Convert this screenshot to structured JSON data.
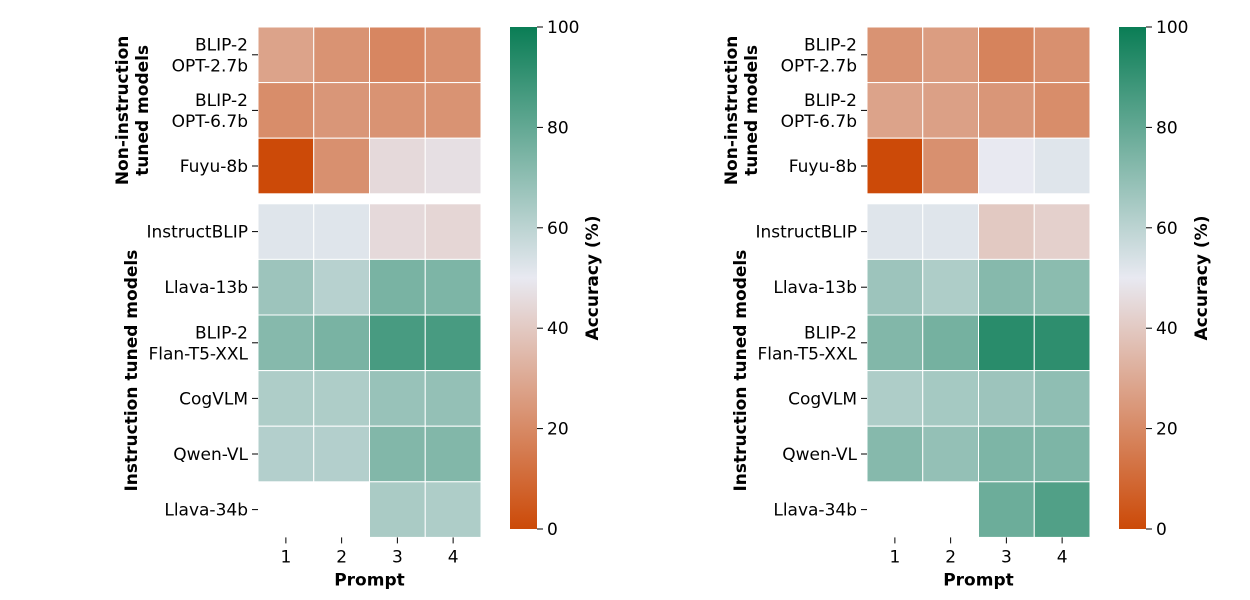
{
  "chart_data": [
    {
      "type": "heatmap",
      "xlabel": "Prompt",
      "colorbar_label": "Accuracy (%)",
      "colorbar_range": [
        0,
        100
      ],
      "colorbar_ticks": [
        0,
        20,
        40,
        60,
        80,
        100
      ],
      "colormap": {
        "low": "#cc4a08",
        "mid": "#e8e9f1",
        "high": "#0a7d55"
      },
      "x_categories": [
        "1",
        "2",
        "3",
        "4"
      ],
      "groups": [
        {
          "label": [
            "Non-instruction",
            "tuned models"
          ],
          "rows": [
            {
              "label": [
                "BLIP-2",
                "OPT-2.7b"
              ],
              "values": [
                28,
                23,
                19,
                22
              ]
            },
            {
              "label": [
                "BLIP-2",
                "OPT-6.7b"
              ],
              "values": [
                21,
                24,
                23,
                23
              ]
            },
            {
              "label": [
                "Fuyu-8b"
              ],
              "values": [
                0,
                22,
                45,
                47
              ]
            }
          ]
        },
        {
          "label": [
            "Instruction tuned models"
          ],
          "rows": [
            {
              "label": [
                "InstructBLIP"
              ],
              "values": [
                52,
                52,
                45,
                44
              ]
            },
            {
              "label": [
                "Llava-13b"
              ],
              "values": [
                67,
                61,
                75,
                74
              ]
            },
            {
              "label": [
                "BLIP-2",
                "Flan-T5-XXL"
              ],
              "values": [
                72,
                75,
                86,
                86
              ]
            },
            {
              "label": [
                "CogVLM"
              ],
              "values": [
                63,
                63,
                68,
                69
              ]
            },
            {
              "label": [
                "Qwen-VL"
              ],
              "values": [
                62,
                62,
                73,
                73
              ]
            },
            {
              "label": [
                "Llava-34b"
              ],
              "values": [
                null,
                null,
                64,
                63
              ]
            }
          ]
        }
      ]
    },
    {
      "type": "heatmap",
      "xlabel": "Prompt",
      "colorbar_label": "Accuracy (%)",
      "colorbar_range": [
        0,
        100
      ],
      "colorbar_ticks": [
        0,
        20,
        40,
        60,
        80,
        100
      ],
      "colormap": {
        "low": "#cc4a08",
        "mid": "#e8e9f1",
        "high": "#0a7d55"
      },
      "x_categories": [
        "1",
        "2",
        "3",
        "4"
      ],
      "groups": [
        {
          "label": [
            "Non-instruction",
            "tuned models"
          ],
          "rows": [
            {
              "label": [
                "BLIP-2",
                "OPT-2.7b"
              ],
              "values": [
                23,
                26,
                18,
                22
              ]
            },
            {
              "label": [
                "BLIP-2",
                "OPT-6.7b"
              ],
              "values": [
                28,
                27,
                24,
                21
              ]
            },
            {
              "label": [
                "Fuyu-8b"
              ],
              "values": [
                0,
                22,
                50,
                52
              ]
            }
          ]
        },
        {
          "label": [
            "Instruction tuned models"
          ],
          "rows": [
            {
              "label": [
                "InstructBLIP"
              ],
              "values": [
                52,
                52,
                40,
                42
              ]
            },
            {
              "label": [
                "Llava-13b"
              ],
              "values": [
                67,
                63,
                72,
                71
              ]
            },
            {
              "label": [
                "BLIP-2",
                "Flan-T5-XXL"
              ],
              "values": [
                73,
                76,
                93,
                92
              ]
            },
            {
              "label": [
                "CogVLM"
              ],
              "values": [
                63,
                65,
                67,
                70
              ]
            },
            {
              "label": [
                "Qwen-VL"
              ],
              "values": [
                72,
                69,
                74,
                74
              ]
            },
            {
              "label": [
                "Llava-34b"
              ],
              "values": [
                null,
                null,
                78,
                84
              ]
            }
          ]
        }
      ]
    }
  ]
}
